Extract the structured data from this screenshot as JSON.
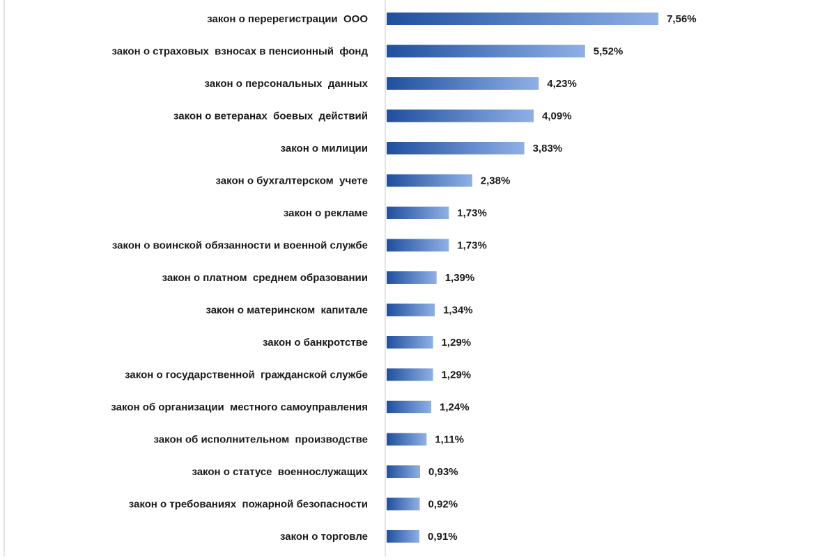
{
  "chart_data": {
    "type": "bar",
    "orientation": "horizontal",
    "title": "",
    "xlabel": "",
    "ylabel": "",
    "categories": [
      "закон о перерегистрации  ООО",
      "закон о страховых  взносах в пенсионный  фонд",
      "закон о персональных  данных",
      "закон о ветеранах  боевых  действий",
      "закон о милиции",
      "закон о бухгалтерском  учете",
      "закон о рекламе",
      "закон о воинской обязанности и военной службе",
      "закон о платном  среднем образовании",
      "закон о материнском  капитале",
      "закон о банкротстве",
      "закон о государственной  гражданской службе",
      "закон об организации  местного самоуправления",
      "закон об исполнительном  производстве",
      "закон о статусе  военнослужащих",
      "закон о требованиях  пожарной безопасности",
      "закон о торговле"
    ],
    "values": [
      7.56,
      5.52,
      4.23,
      4.09,
      3.83,
      2.38,
      1.73,
      1.73,
      1.39,
      1.34,
      1.29,
      1.29,
      1.24,
      1.11,
      0.93,
      0.92,
      0.91
    ],
    "data_labels": [
      "7,56%",
      "5,52%",
      "4,23%",
      "4,09%",
      "3,83%",
      "2,38%",
      "1,73%",
      "1,73%",
      "1,39%",
      "1,34%",
      "1,29%",
      "1,29%",
      "1,24%",
      "1,11%",
      "0,93%",
      "0,92%",
      "0,91%"
    ],
    "xlim": [
      0,
      8
    ],
    "grid": false,
    "legend": "none",
    "colors": {
      "bar_dark": "#1f4f9e",
      "bar_light": "#8fb0e6",
      "axis": "#c8c8c8",
      "text": "#1a1a1a"
    }
  }
}
